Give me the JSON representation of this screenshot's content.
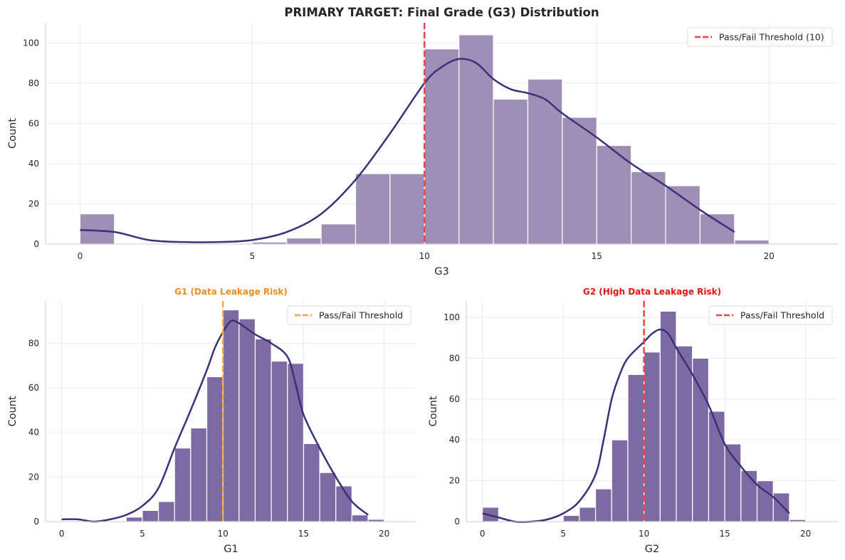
{
  "chart_data": [
    {
      "id": "g3",
      "type": "bar",
      "title": "PRIMARY TARGET: Final Grade (G3) Distribution",
      "title_color": "#262626",
      "xlabel": "G3",
      "ylabel": "Count",
      "xlim": [
        -1,
        22
      ],
      "ylim": [
        0,
        110
      ],
      "xticks": [
        0,
        5,
        10,
        15,
        20
      ],
      "yticks": [
        0,
        20,
        40,
        60,
        80,
        100
      ],
      "bar_color": "#9d8fb5",
      "bins": [
        {
          "x0": 0,
          "x1": 1,
          "count": 15
        },
        {
          "x0": 1,
          "x1": 2,
          "count": 0
        },
        {
          "x0": 2,
          "x1": 3,
          "count": 0
        },
        {
          "x0": 3,
          "x1": 4,
          "count": 0
        },
        {
          "x0": 4,
          "x1": 5,
          "count": 0
        },
        {
          "x0": 5,
          "x1": 6,
          "count": 1
        },
        {
          "x0": 6,
          "x1": 7,
          "count": 3
        },
        {
          "x0": 7,
          "x1": 8,
          "count": 10
        },
        {
          "x0": 8,
          "x1": 9,
          "count": 35
        },
        {
          "x0": 9,
          "x1": 10,
          "count": 35
        },
        {
          "x0": 10,
          "x1": 11,
          "count": 97
        },
        {
          "x0": 11,
          "x1": 12,
          "count": 104
        },
        {
          "x0": 12,
          "x1": 13,
          "count": 72
        },
        {
          "x0": 13,
          "x1": 14,
          "count": 82
        },
        {
          "x0": 14,
          "x1": 15,
          "count": 63
        },
        {
          "x0": 15,
          "x1": 16,
          "count": 49
        },
        {
          "x0": 16,
          "x1": 17,
          "count": 36
        },
        {
          "x0": 17,
          "x1": 18,
          "count": 29
        },
        {
          "x0": 18,
          "x1": 19,
          "count": 15
        },
        {
          "x0": 19,
          "x1": 20,
          "count": 2
        }
      ],
      "kde": [
        [
          0,
          7
        ],
        [
          1,
          6
        ],
        [
          2,
          2
        ],
        [
          3,
          1
        ],
        [
          4,
          1
        ],
        [
          5,
          2
        ],
        [
          6,
          6
        ],
        [
          7,
          15
        ],
        [
          8,
          32
        ],
        [
          9,
          55
        ],
        [
          10,
          80
        ],
        [
          10.5,
          88
        ],
        [
          11,
          92
        ],
        [
          11.5,
          90
        ],
        [
          12,
          82
        ],
        [
          12.5,
          77
        ],
        [
          13,
          75
        ],
        [
          13.5,
          72
        ],
        [
          14,
          65
        ],
        [
          15,
          53
        ],
        [
          16,
          40
        ],
        [
          17,
          29
        ],
        [
          18,
          17
        ],
        [
          19,
          6
        ]
      ],
      "kde_color": "#3f2f7a",
      "threshold": {
        "x": 10,
        "label": "Pass/Fail Threshold (10)",
        "color": "#ef4444"
      }
    },
    {
      "id": "g1",
      "type": "bar",
      "title": "G1 (Data Leakage Risk)",
      "title_color": "#f28c1e",
      "xlabel": "G1",
      "ylabel": "Count",
      "xlim": [
        -1,
        22
      ],
      "ylim": [
        0,
        99
      ],
      "xticks": [
        0,
        5,
        10,
        15,
        20
      ],
      "yticks": [
        0,
        20,
        40,
        60,
        80
      ],
      "bar_color": "#7b6ba2",
      "bins": [
        {
          "x0": 0,
          "x1": 1,
          "count": 0
        },
        {
          "x0": 1,
          "x1": 2,
          "count": 0
        },
        {
          "x0": 2,
          "x1": 3,
          "count": 0
        },
        {
          "x0": 3,
          "x1": 4,
          "count": 0
        },
        {
          "x0": 4,
          "x1": 5,
          "count": 2
        },
        {
          "x0": 5,
          "x1": 6,
          "count": 5
        },
        {
          "x0": 6,
          "x1": 7,
          "count": 9
        },
        {
          "x0": 7,
          "x1": 8,
          "count": 33
        },
        {
          "x0": 8,
          "x1": 9,
          "count": 42
        },
        {
          "x0": 9,
          "x1": 10,
          "count": 65
        },
        {
          "x0": 10,
          "x1": 11,
          "count": 95
        },
        {
          "x0": 11,
          "x1": 12,
          "count": 91
        },
        {
          "x0": 12,
          "x1": 13,
          "count": 82
        },
        {
          "x0": 13,
          "x1": 14,
          "count": 72
        },
        {
          "x0": 14,
          "x1": 15,
          "count": 71
        },
        {
          "x0": 15,
          "x1": 16,
          "count": 35
        },
        {
          "x0": 16,
          "x1": 17,
          "count": 22
        },
        {
          "x0": 17,
          "x1": 18,
          "count": 16
        },
        {
          "x0": 18,
          "x1": 19,
          "count": 3
        },
        {
          "x0": 19,
          "x1": 20,
          "count": 1
        }
      ],
      "kde": [
        [
          0,
          1
        ],
        [
          1,
          1
        ],
        [
          2,
          0
        ],
        [
          3,
          1
        ],
        [
          4,
          3
        ],
        [
          5,
          7
        ],
        [
          6,
          15
        ],
        [
          7,
          33
        ],
        [
          8,
          50
        ],
        [
          9,
          68
        ],
        [
          9.5,
          78
        ],
        [
          10,
          85
        ],
        [
          10.5,
          90
        ],
        [
          11,
          89
        ],
        [
          12,
          84
        ],
        [
          13,
          80
        ],
        [
          14,
          74
        ],
        [
          14.5,
          62
        ],
        [
          15,
          48
        ],
        [
          16,
          33
        ],
        [
          17,
          20
        ],
        [
          18,
          9
        ],
        [
          19,
          3
        ]
      ],
      "kde_color": "#3f2f7a",
      "threshold": {
        "x": 10,
        "label": "Pass/Fail Threshold",
        "color": "#f5a54a"
      }
    },
    {
      "id": "g2",
      "type": "bar",
      "title": "G2 (High Data Leakage Risk)",
      "title_color": "#ee1111",
      "xlabel": "G2",
      "ylabel": "Count",
      "xlim": [
        -1,
        22
      ],
      "ylim": [
        0,
        108
      ],
      "xticks": [
        0,
        5,
        10,
        15,
        20
      ],
      "yticks": [
        0,
        20,
        40,
        60,
        80,
        100
      ],
      "bar_color": "#7b6ba2",
      "bins": [
        {
          "x0": 0,
          "x1": 1,
          "count": 7
        },
        {
          "x0": 1,
          "x1": 2,
          "count": 0
        },
        {
          "x0": 2,
          "x1": 3,
          "count": 0
        },
        {
          "x0": 3,
          "x1": 4,
          "count": 0
        },
        {
          "x0": 4,
          "x1": 5,
          "count": 0
        },
        {
          "x0": 5,
          "x1": 6,
          "count": 3
        },
        {
          "x0": 6,
          "x1": 7,
          "count": 7
        },
        {
          "x0": 7,
          "x1": 8,
          "count": 16
        },
        {
          "x0": 8,
          "x1": 9,
          "count": 40
        },
        {
          "x0": 9,
          "x1": 10,
          "count": 72
        },
        {
          "x0": 10,
          "x1": 11,
          "count": 83
        },
        {
          "x0": 11,
          "x1": 12,
          "count": 103
        },
        {
          "x0": 12,
          "x1": 13,
          "count": 86
        },
        {
          "x0": 13,
          "x1": 14,
          "count": 80
        },
        {
          "x0": 14,
          "x1": 15,
          "count": 54
        },
        {
          "x0": 15,
          "x1": 16,
          "count": 38
        },
        {
          "x0": 16,
          "x1": 17,
          "count": 25
        },
        {
          "x0": 17,
          "x1": 18,
          "count": 20
        },
        {
          "x0": 18,
          "x1": 19,
          "count": 14
        },
        {
          "x0": 19,
          "x1": 20,
          "count": 1
        }
      ],
      "kde": [
        [
          0,
          4
        ],
        [
          1,
          2
        ],
        [
          2,
          0
        ],
        [
          3,
          0
        ],
        [
          4,
          1
        ],
        [
          5,
          4
        ],
        [
          6,
          10
        ],
        [
          7,
          23
        ],
        [
          7.5,
          40
        ],
        [
          8,
          60
        ],
        [
          8.5,
          72
        ],
        [
          9,
          80
        ],
        [
          10,
          88
        ],
        [
          10.5,
          92
        ],
        [
          11,
          94
        ],
        [
          11.5,
          92
        ],
        [
          12,
          85
        ],
        [
          13,
          72
        ],
        [
          14,
          57
        ],
        [
          15,
          38
        ],
        [
          16,
          27
        ],
        [
          17,
          18
        ],
        [
          18,
          12
        ],
        [
          19,
          4
        ]
      ],
      "kde_color": "#3f2f7a",
      "threshold": {
        "x": 10,
        "label": "Pass/Fail Threshold",
        "color": "#ef4444"
      }
    }
  ]
}
